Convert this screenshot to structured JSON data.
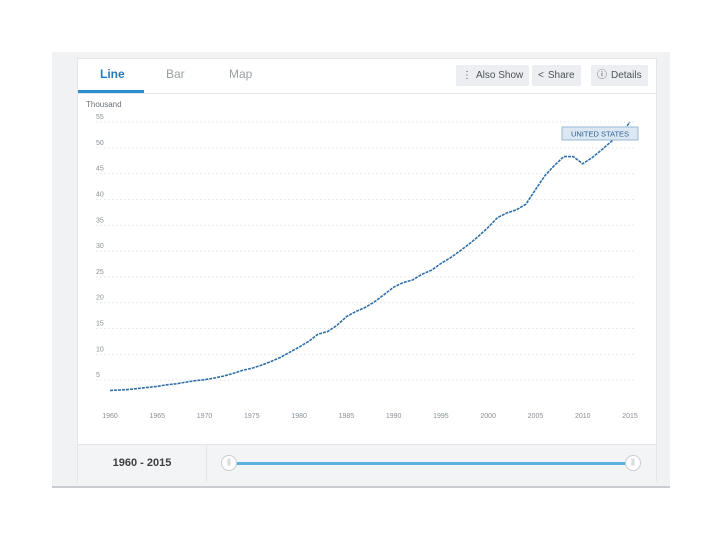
{
  "tabs": [
    {
      "label": "Line",
      "active": true
    },
    {
      "label": "Bar",
      "active": false
    },
    {
      "label": "Map",
      "active": false
    }
  ],
  "toolbar": {
    "also_show": "Also Show",
    "share": "Share",
    "details": "Details",
    "also_show_icon": "vertical-dots-icon",
    "share_icon": "share-icon",
    "details_icon": "info-circle-icon"
  },
  "footer": {
    "range_label": "1960 - 2015",
    "slider_start": 1960,
    "slider_end": 2015
  },
  "colors": {
    "line": "#2f6fa8",
    "accent": "#2a8fd0",
    "slider": "#5ab3dd"
  },
  "chart_data": {
    "type": "line",
    "title": "",
    "ylabel": "Thousand",
    "xlabel": "",
    "xlim": [
      1960,
      2015
    ],
    "ylim": [
      0,
      55
    ],
    "x_ticks": [
      1960,
      1965,
      1970,
      1975,
      1980,
      1985,
      1990,
      1995,
      2000,
      2005,
      2010,
      2015
    ],
    "y_ticks": [
      5,
      10,
      15,
      20,
      25,
      30,
      35,
      40,
      45,
      50,
      55
    ],
    "grid": true,
    "series": [
      {
        "name": "UNITED STATES",
        "x": [
          1960,
          1961,
          1962,
          1963,
          1964,
          1965,
          1966,
          1967,
          1968,
          1969,
          1970,
          1971,
          1972,
          1973,
          1974,
          1975,
          1976,
          1977,
          1978,
          1979,
          1980,
          1981,
          1982,
          1983,
          1984,
          1985,
          1986,
          1987,
          1988,
          1989,
          1990,
          1991,
          1992,
          1993,
          1994,
          1995,
          1996,
          1997,
          1998,
          1999,
          2000,
          2001,
          2002,
          2003,
          2004,
          2005,
          2006,
          2007,
          2008,
          2009,
          2010,
          2011,
          2012,
          2013,
          2014,
          2015
        ],
        "y": [
          3.0,
          3.1,
          3.2,
          3.4,
          3.6,
          3.8,
          4.1,
          4.3,
          4.6,
          4.9,
          5.1,
          5.4,
          5.8,
          6.3,
          6.9,
          7.3,
          7.9,
          8.6,
          9.4,
          10.4,
          11.4,
          12.5,
          13.9,
          14.4,
          15.6,
          17.3,
          18.3,
          19.1,
          20.2,
          21.6,
          23.0,
          23.9,
          24.4,
          25.5,
          26.3,
          27.6,
          28.7,
          30.0,
          31.4,
          32.9,
          34.6,
          36.5,
          37.4,
          38.0,
          39.1,
          41.9,
          44.6,
          46.6,
          48.3,
          48.3,
          46.9,
          48.1,
          49.6,
          51.2,
          52.6,
          55.0
        ]
      }
    ],
    "annotations": [
      {
        "text": "UNITED STATES",
        "series": "UNITED STATES"
      }
    ]
  }
}
